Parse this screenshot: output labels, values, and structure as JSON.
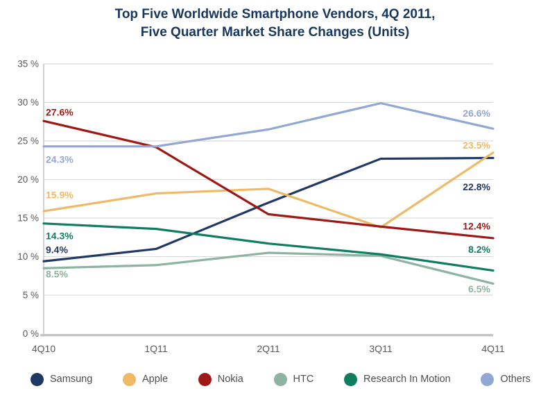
{
  "title": {
    "line1": "Top Five Worldwide Smartphone Vendors, 4Q 2011,",
    "line2": "Five Quarter Market Share Changes (Units)"
  },
  "y_axis": {
    "tick_labels": [
      "35 %",
      "30 %",
      "25 %",
      "20 %",
      "15 %",
      "10 %",
      "5 %",
      "0 %"
    ]
  },
  "chart_data": {
    "type": "line",
    "title": "Top Five Worldwide Smartphone Vendors, 4Q 2011, Five Quarter Market Share Changes (Units)",
    "categories": [
      "4Q10",
      "1Q11",
      "2Q11",
      "3Q11",
      "4Q11"
    ],
    "ylim": [
      0,
      35
    ],
    "y_tick_step": 5,
    "grid": true,
    "legend_position": "bottom",
    "series": [
      {
        "name": "Samsung",
        "color": "#1F3864",
        "values": [
          9.4,
          11.0,
          17.0,
          22.7,
          22.8
        ],
        "first_label": "9.4%",
        "last_label": "22.8%"
      },
      {
        "name": "Apple",
        "color": "#EFBA66",
        "values": [
          15.9,
          18.2,
          18.8,
          13.8,
          23.5
        ],
        "first_label": "15.9%",
        "last_label": "23.5%"
      },
      {
        "name": "Nokia",
        "color": "#9E1915",
        "values": [
          27.6,
          24.2,
          15.5,
          13.9,
          12.4
        ],
        "first_label": "27.6%",
        "last_label": "12.4%"
      },
      {
        "name": "HTC",
        "color": "#8CB4A0",
        "values": [
          8.5,
          8.9,
          10.5,
          10.1,
          6.5
        ],
        "first_label": "8.5%",
        "last_label": "6.5%"
      },
      {
        "name": "Research In Motion",
        "color": "#107C60",
        "values": [
          14.3,
          13.6,
          11.7,
          10.3,
          8.2
        ],
        "first_label": "14.3%",
        "last_label": "8.2%"
      },
      {
        "name": "Others",
        "color": "#91A8D4",
        "values": [
          24.3,
          24.3,
          26.5,
          29.9,
          26.6
        ],
        "first_label": "24.3%",
        "last_label": "26.6%"
      }
    ]
  },
  "colors": {
    "title_text": "#17375D",
    "axis_text": "#595959",
    "gridline": "#D9D9D9",
    "axis_line": "#C4C4C4",
    "legend_text": "#4D4D4D",
    "background": "#FFFFFF"
  }
}
